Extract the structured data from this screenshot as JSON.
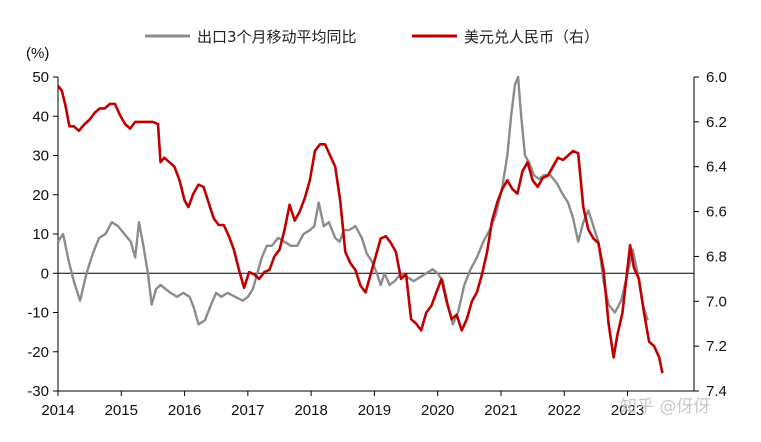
{
  "chart_data": {
    "type": "line",
    "y_unit": "(%)",
    "x_tick_labels": [
      "2014",
      "2015",
      "2016",
      "2017",
      "2018",
      "2019",
      "2020",
      "2021",
      "2022",
      "2023"
    ],
    "y_left": {
      "ylim": [
        -30,
        50
      ],
      "ticks": [
        50,
        40,
        30,
        20,
        10,
        0,
        -10,
        -20,
        -30
      ]
    },
    "y_right": {
      "ylim": [
        6.0,
        7.4
      ],
      "inverted": true,
      "ticks": [
        "6.0",
        "6.2",
        "6.4",
        "6.6",
        "6.8",
        "7.0",
        "7.2",
        "7.4"
      ]
    },
    "legend_position": "top-center",
    "series": [
      {
        "name": "出口3个月移动平均同比",
        "color": "#8c8c8c",
        "axis": "left",
        "points": [
          [
            2014.0,
            8
          ],
          [
            2014.08,
            10
          ],
          [
            2014.17,
            3
          ],
          [
            2014.25,
            -2
          ],
          [
            2014.35,
            -7
          ],
          [
            2014.45,
            0
          ],
          [
            2014.55,
            5
          ],
          [
            2014.65,
            9
          ],
          [
            2014.75,
            10
          ],
          [
            2014.85,
            13
          ],
          [
            2014.95,
            12
          ],
          [
            2015.05,
            10
          ],
          [
            2015.15,
            8
          ],
          [
            2015.22,
            4
          ],
          [
            2015.28,
            13
          ],
          [
            2015.35,
            7
          ],
          [
            2015.42,
            0
          ],
          [
            2015.48,
            -8
          ],
          [
            2015.55,
            -4
          ],
          [
            2015.62,
            -3
          ],
          [
            2015.7,
            -4
          ],
          [
            2015.78,
            -5
          ],
          [
            2015.88,
            -6
          ],
          [
            2015.98,
            -5
          ],
          [
            2016.08,
            -6
          ],
          [
            2016.15,
            -9
          ],
          [
            2016.22,
            -13
          ],
          [
            2016.32,
            -12
          ],
          [
            2016.42,
            -8
          ],
          [
            2016.5,
            -5
          ],
          [
            2016.58,
            -6
          ],
          [
            2016.68,
            -5
          ],
          [
            2016.8,
            -6
          ],
          [
            2016.92,
            -7
          ],
          [
            2017.0,
            -6
          ],
          [
            2017.08,
            -4
          ],
          [
            2017.15,
            0
          ],
          [
            2017.22,
            4
          ],
          [
            2017.3,
            7
          ],
          [
            2017.38,
            7
          ],
          [
            2017.48,
            9
          ],
          [
            2017.58,
            8
          ],
          [
            2017.68,
            7
          ],
          [
            2017.78,
            7
          ],
          [
            2017.88,
            10
          ],
          [
            2017.98,
            11
          ],
          [
            2018.05,
            12
          ],
          [
            2018.12,
            18
          ],
          [
            2018.2,
            12
          ],
          [
            2018.28,
            13
          ],
          [
            2018.38,
            9
          ],
          [
            2018.45,
            8
          ],
          [
            2018.52,
            11
          ],
          [
            2018.6,
            11
          ],
          [
            2018.7,
            12
          ],
          [
            2018.8,
            9
          ],
          [
            2018.88,
            5
          ],
          [
            2018.96,
            3
          ],
          [
            2019.04,
            0
          ],
          [
            2019.1,
            -3
          ],
          [
            2019.16,
            0
          ],
          [
            2019.24,
            -3
          ],
          [
            2019.32,
            -2
          ],
          [
            2019.42,
            0
          ],
          [
            2019.52,
            -1
          ],
          [
            2019.62,
            -2
          ],
          [
            2019.72,
            -1
          ],
          [
            2019.82,
            0
          ],
          [
            2019.92,
            1
          ],
          [
            2020.0,
            0
          ],
          [
            2020.08,
            -2
          ],
          [
            2020.16,
            -8
          ],
          [
            2020.24,
            -13
          ],
          [
            2020.32,
            -10
          ],
          [
            2020.42,
            -3
          ],
          [
            2020.52,
            1
          ],
          [
            2020.62,
            4
          ],
          [
            2020.72,
            8
          ],
          [
            2020.82,
            11
          ],
          [
            2020.92,
            15
          ],
          [
            2021.02,
            22
          ],
          [
            2021.1,
            30
          ],
          [
            2021.16,
            40
          ],
          [
            2021.22,
            48
          ],
          [
            2021.27,
            50
          ],
          [
            2021.32,
            40
          ],
          [
            2021.38,
            30
          ],
          [
            2021.45,
            28
          ],
          [
            2021.52,
            25
          ],
          [
            2021.6,
            24
          ],
          [
            2021.68,
            25
          ],
          [
            2021.78,
            25
          ],
          [
            2021.88,
            23
          ],
          [
            2021.98,
            20
          ],
          [
            2022.06,
            18
          ],
          [
            2022.14,
            14
          ],
          [
            2022.22,
            8
          ],
          [
            2022.3,
            13
          ],
          [
            2022.38,
            16
          ],
          [
            2022.46,
            12
          ],
          [
            2022.54,
            8
          ],
          [
            2022.62,
            -2
          ],
          [
            2022.7,
            -8
          ],
          [
            2022.8,
            -10
          ],
          [
            2022.9,
            -7
          ],
          [
            2023.0,
            0
          ],
          [
            2023.08,
            6
          ],
          [
            2023.16,
            0
          ],
          [
            2023.24,
            -8
          ],
          [
            2023.32,
            -12
          ]
        ]
      },
      {
        "name": "美元兑人民币（右）",
        "color": "#c00000",
        "axis": "right",
        "points": [
          [
            2014.0,
            6.04
          ],
          [
            2014.06,
            6.06
          ],
          [
            2014.12,
            6.13
          ],
          [
            2014.18,
            6.22
          ],
          [
            2014.25,
            6.22
          ],
          [
            2014.33,
            6.24
          ],
          [
            2014.42,
            6.21
          ],
          [
            2014.5,
            6.19
          ],
          [
            2014.58,
            6.16
          ],
          [
            2014.66,
            6.14
          ],
          [
            2014.74,
            6.14
          ],
          [
            2014.82,
            6.12
          ],
          [
            2014.9,
            6.12
          ],
          [
            2014.98,
            6.17
          ],
          [
            2015.06,
            6.21
          ],
          [
            2015.14,
            6.23
          ],
          [
            2015.22,
            6.2
          ],
          [
            2015.3,
            6.2
          ],
          [
            2015.4,
            6.2
          ],
          [
            2015.5,
            6.2
          ],
          [
            2015.58,
            6.21
          ],
          [
            2015.62,
            6.38
          ],
          [
            2015.68,
            6.36
          ],
          [
            2015.76,
            6.38
          ],
          [
            2015.84,
            6.4
          ],
          [
            2015.92,
            6.46
          ],
          [
            2016.0,
            6.55
          ],
          [
            2016.06,
            6.58
          ],
          [
            2016.14,
            6.52
          ],
          [
            2016.22,
            6.48
          ],
          [
            2016.3,
            6.49
          ],
          [
            2016.38,
            6.56
          ],
          [
            2016.46,
            6.63
          ],
          [
            2016.54,
            6.66
          ],
          [
            2016.62,
            6.66
          ],
          [
            2016.7,
            6.71
          ],
          [
            2016.78,
            6.77
          ],
          [
            2016.86,
            6.86
          ],
          [
            2016.94,
            6.94
          ],
          [
            2017.02,
            6.87
          ],
          [
            2017.1,
            6.88
          ],
          [
            2017.18,
            6.9
          ],
          [
            2017.26,
            6.87
          ],
          [
            2017.34,
            6.86
          ],
          [
            2017.42,
            6.8
          ],
          [
            2017.5,
            6.77
          ],
          [
            2017.58,
            6.68
          ],
          [
            2017.66,
            6.57
          ],
          [
            2017.74,
            6.64
          ],
          [
            2017.82,
            6.6
          ],
          [
            2017.9,
            6.54
          ],
          [
            2017.98,
            6.46
          ],
          [
            2018.06,
            6.33
          ],
          [
            2018.14,
            6.3
          ],
          [
            2018.22,
            6.3
          ],
          [
            2018.3,
            6.35
          ],
          [
            2018.38,
            6.4
          ],
          [
            2018.46,
            6.55
          ],
          [
            2018.54,
            6.78
          ],
          [
            2018.62,
            6.83
          ],
          [
            2018.7,
            6.86
          ],
          [
            2018.78,
            6.93
          ],
          [
            2018.86,
            6.96
          ],
          [
            2018.94,
            6.88
          ],
          [
            2019.02,
            6.8
          ],
          [
            2019.1,
            6.72
          ],
          [
            2019.18,
            6.71
          ],
          [
            2019.26,
            6.74
          ],
          [
            2019.34,
            6.78
          ],
          [
            2019.42,
            6.9
          ],
          [
            2019.5,
            6.88
          ],
          [
            2019.58,
            7.08
          ],
          [
            2019.66,
            7.1
          ],
          [
            2019.74,
            7.13
          ],
          [
            2019.82,
            7.05
          ],
          [
            2019.9,
            7.02
          ],
          [
            2019.98,
            6.96
          ],
          [
            2020.06,
            6.9
          ],
          [
            2020.14,
            7.0
          ],
          [
            2020.22,
            7.08
          ],
          [
            2020.3,
            7.06
          ],
          [
            2020.38,
            7.13
          ],
          [
            2020.46,
            7.08
          ],
          [
            2020.54,
            7.0
          ],
          [
            2020.62,
            6.96
          ],
          [
            2020.7,
            6.88
          ],
          [
            2020.78,
            6.78
          ],
          [
            2020.86,
            6.64
          ],
          [
            2020.94,
            6.56
          ],
          [
            2021.02,
            6.5
          ],
          [
            2021.1,
            6.46
          ],
          [
            2021.18,
            6.5
          ],
          [
            2021.26,
            6.52
          ],
          [
            2021.34,
            6.42
          ],
          [
            2021.42,
            6.38
          ],
          [
            2021.5,
            6.46
          ],
          [
            2021.58,
            6.49
          ],
          [
            2021.66,
            6.45
          ],
          [
            2021.74,
            6.44
          ],
          [
            2021.82,
            6.4
          ],
          [
            2021.9,
            6.36
          ],
          [
            2021.98,
            6.37
          ],
          [
            2022.06,
            6.35
          ],
          [
            2022.14,
            6.33
          ],
          [
            2022.22,
            6.34
          ],
          [
            2022.3,
            6.58
          ],
          [
            2022.38,
            6.68
          ],
          [
            2022.46,
            6.72
          ],
          [
            2022.54,
            6.74
          ],
          [
            2022.62,
            6.86
          ],
          [
            2022.7,
            7.1
          ],
          [
            2022.78,
            7.25
          ],
          [
            2022.84,
            7.15
          ],
          [
            2022.92,
            7.05
          ],
          [
            2022.98,
            6.9
          ],
          [
            2023.04,
            6.75
          ],
          [
            2023.1,
            6.85
          ],
          [
            2023.18,
            6.9
          ],
          [
            2023.26,
            7.05
          ],
          [
            2023.34,
            7.18
          ],
          [
            2023.42,
            7.2
          ],
          [
            2023.5,
            7.25
          ],
          [
            2023.55,
            7.32
          ]
        ]
      }
    ]
  },
  "watermark": "知乎 @伢伢"
}
